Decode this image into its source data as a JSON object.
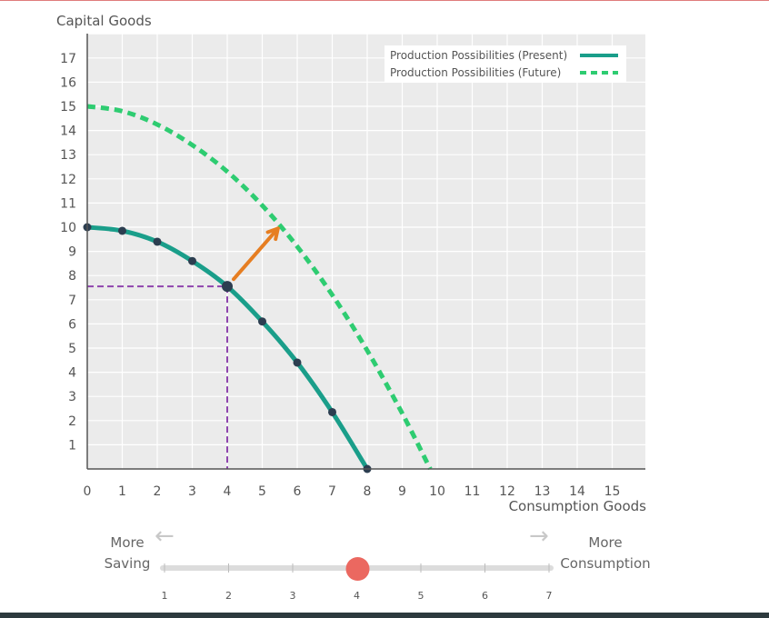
{
  "chart_data": {
    "type": "line",
    "title": "",
    "ylabel": "Capital Goods",
    "xlabel": "Consumption Goods",
    "xlim": [
      0,
      16
    ],
    "ylim": [
      0,
      18
    ],
    "x_ticks": [
      0,
      1,
      2,
      3,
      4,
      5,
      6,
      7,
      8,
      9,
      10,
      11,
      12,
      13,
      14,
      15
    ],
    "y_ticks": [
      1,
      2,
      3,
      4,
      5,
      6,
      7,
      8,
      9,
      10,
      11,
      12,
      13,
      14,
      15,
      16,
      17
    ],
    "grid": true,
    "legend_position": "top-right",
    "series": [
      {
        "name": "Production Possibilities (Present)",
        "style": "solid",
        "color": "#1a9e8a",
        "x": [
          0,
          1,
          2,
          3,
          4,
          5,
          6,
          7,
          8
        ],
        "y": [
          10,
          9.85,
          9.4,
          8.6,
          7.55,
          6.1,
          4.4,
          2.35,
          0
        ],
        "markers": true
      },
      {
        "name": "Production Possibilities (Future)",
        "style": "dashed",
        "color": "#2ecc71",
        "x": [
          0,
          1,
          2,
          3,
          4,
          5,
          6,
          7,
          8,
          9,
          9.8
        ],
        "y": [
          15,
          14.8,
          14.25,
          13.4,
          12.3,
          10.9,
          9.2,
          7.2,
          4.9,
          2.3,
          0
        ],
        "markers": false
      }
    ],
    "selected_point": {
      "x": 4,
      "y": 7.55,
      "color": "#8e44ad"
    },
    "shift_arrow": {
      "from": [
        4,
        7.55
      ],
      "to": [
        5.45,
        9.95
      ],
      "color": "#e67e22"
    }
  },
  "slider": {
    "left_label_line1": "More",
    "left_label_line2": "Saving",
    "right_label_line1": "More",
    "right_label_line2": "Consumption",
    "ticks": [
      "1",
      "2",
      "3",
      "4",
      "5",
      "6",
      "7"
    ],
    "value": 4,
    "min": 1,
    "max": 7,
    "handle_color": "#eb6860"
  }
}
